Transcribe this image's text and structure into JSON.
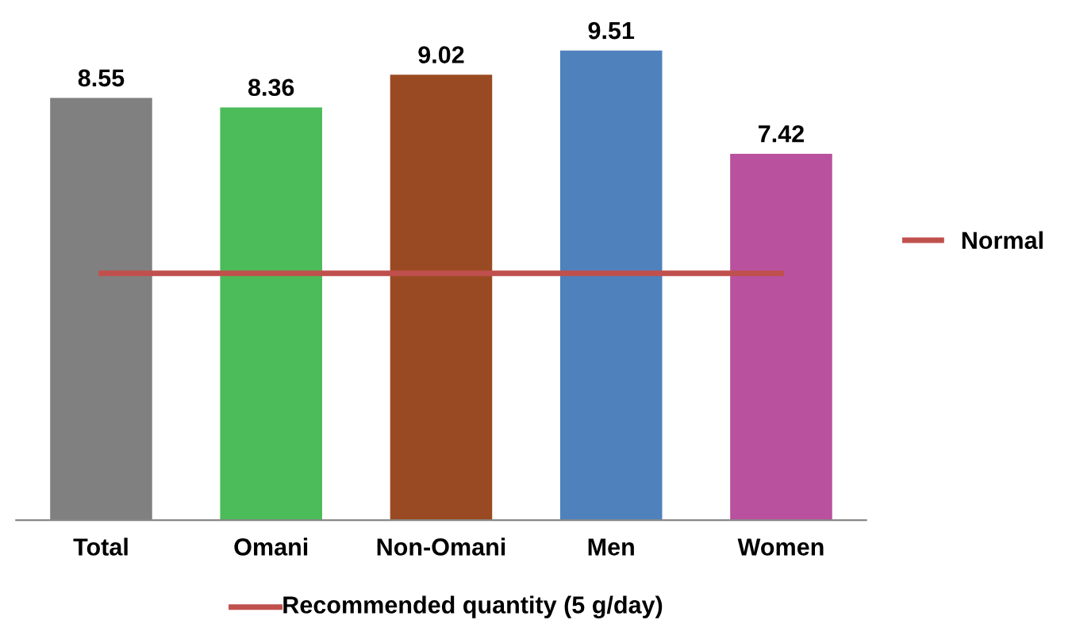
{
  "chart_data": {
    "type": "bar",
    "categories": [
      "Total",
      "Omani",
      "Non-Omani",
      "Men",
      "Women"
    ],
    "series": [
      {
        "values": [
          8.55,
          8.36,
          9.02,
          9.51,
          7.42
        ],
        "value_labels": [
          "8.55",
          "8.36",
          "9.02",
          "9.51",
          "7.42"
        ],
        "colors": [
          "#808080",
          "#4cbb5a",
          "#9a4a22",
          "#4f81bd",
          "#b9519f"
        ]
      },
      {
        "type": "line",
        "name": "Normal",
        "color": "#c0504d",
        "values": [
          5,
          5,
          5,
          5,
          5
        ]
      }
    ],
    "legend": "right",
    "grid": false,
    "annotations": [
      "Recommended quantity (5 g/day)"
    ]
  }
}
